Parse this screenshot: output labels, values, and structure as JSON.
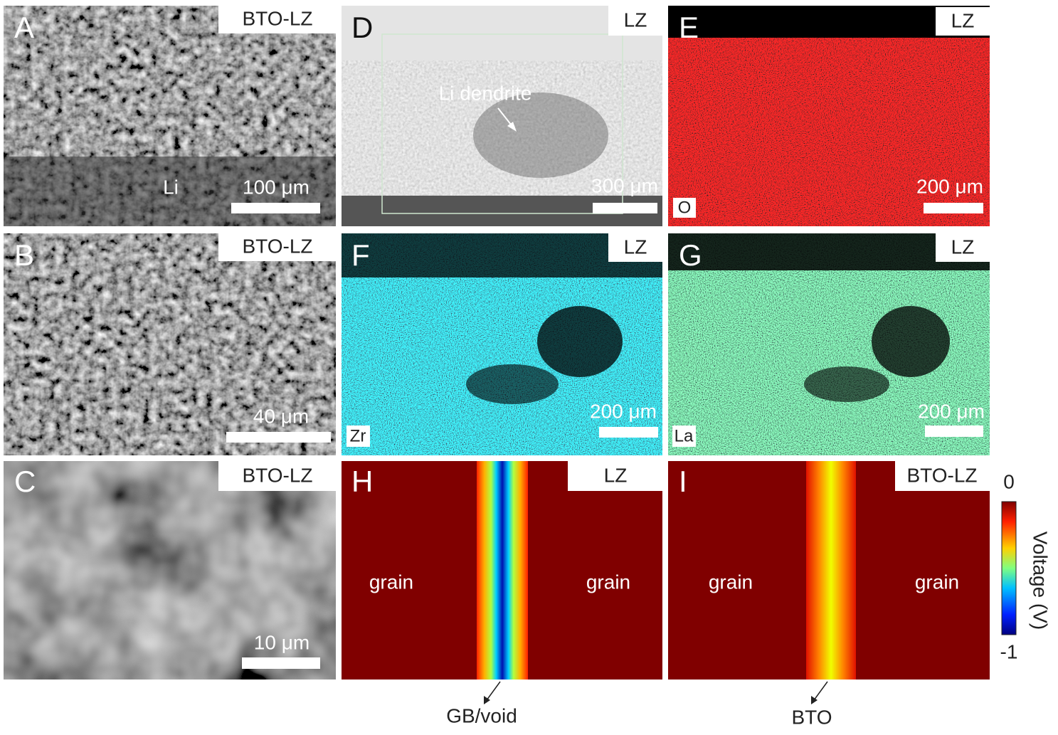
{
  "panels": [
    {
      "letter": "A",
      "tag": "BTO-LZ",
      "scale_bar": "100 μm",
      "notes": [
        "Li"
      ]
    },
    {
      "letter": "B",
      "tag": "BTO-LZ",
      "scale_bar": "40 μm"
    },
    {
      "letter": "C",
      "tag": "BTO-LZ",
      "scale_bar": "10 μm"
    },
    {
      "letter": "D",
      "tag": "LZ",
      "scale_bar": "300 μm",
      "notes": [
        "Li dendrite"
      ]
    },
    {
      "letter": "E",
      "tag": "LZ",
      "scale_bar": "200 μm",
      "element": "O"
    },
    {
      "letter": "F",
      "tag": "LZ",
      "scale_bar": "200 μm",
      "element": "Zr"
    },
    {
      "letter": "G",
      "tag": "LZ",
      "scale_bar": "200 μm",
      "element": "La"
    },
    {
      "letter": "H",
      "tag": "LZ",
      "notes": [
        "grain",
        "grain"
      ],
      "caption": "GB/void"
    },
    {
      "letter": "I",
      "tag": "BTO-LZ",
      "notes": [
        "grain",
        "grain"
      ],
      "caption": "BTO"
    }
  ],
  "colorbar": {
    "title": "Voltage (V)",
    "range": [
      -1,
      0
    ],
    "ticks": [
      0,
      -1
    ]
  }
}
